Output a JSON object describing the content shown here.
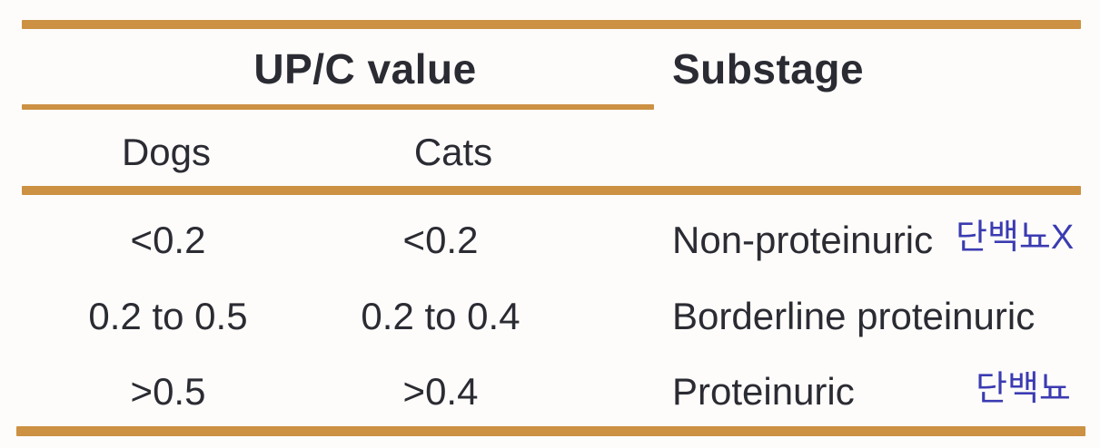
{
  "table": {
    "header": {
      "upc_group": "UP/C value",
      "substage": "Substage"
    },
    "subheader": {
      "dogs": "Dogs",
      "cats": "Cats"
    },
    "rows": [
      {
        "dogs": "<0.2",
        "cats": "<0.2",
        "substage": "Non-proteinuric",
        "annotation": "단백뇨X"
      },
      {
        "dogs": "0.2 to 0.5",
        "cats": "0.2 to 0.4",
        "substage": "Borderline proteinuric",
        "annotation": ""
      },
      {
        "dogs": ">0.5",
        "cats": ">0.4",
        "substage": "Proteinuric",
        "annotation": "단백뇨"
      }
    ],
    "colors": {
      "rule_orange": "#cc9143",
      "body_text": "#2b2b33",
      "annotation_blue": "#3b3bb2",
      "background": "#fdfcfa"
    }
  }
}
